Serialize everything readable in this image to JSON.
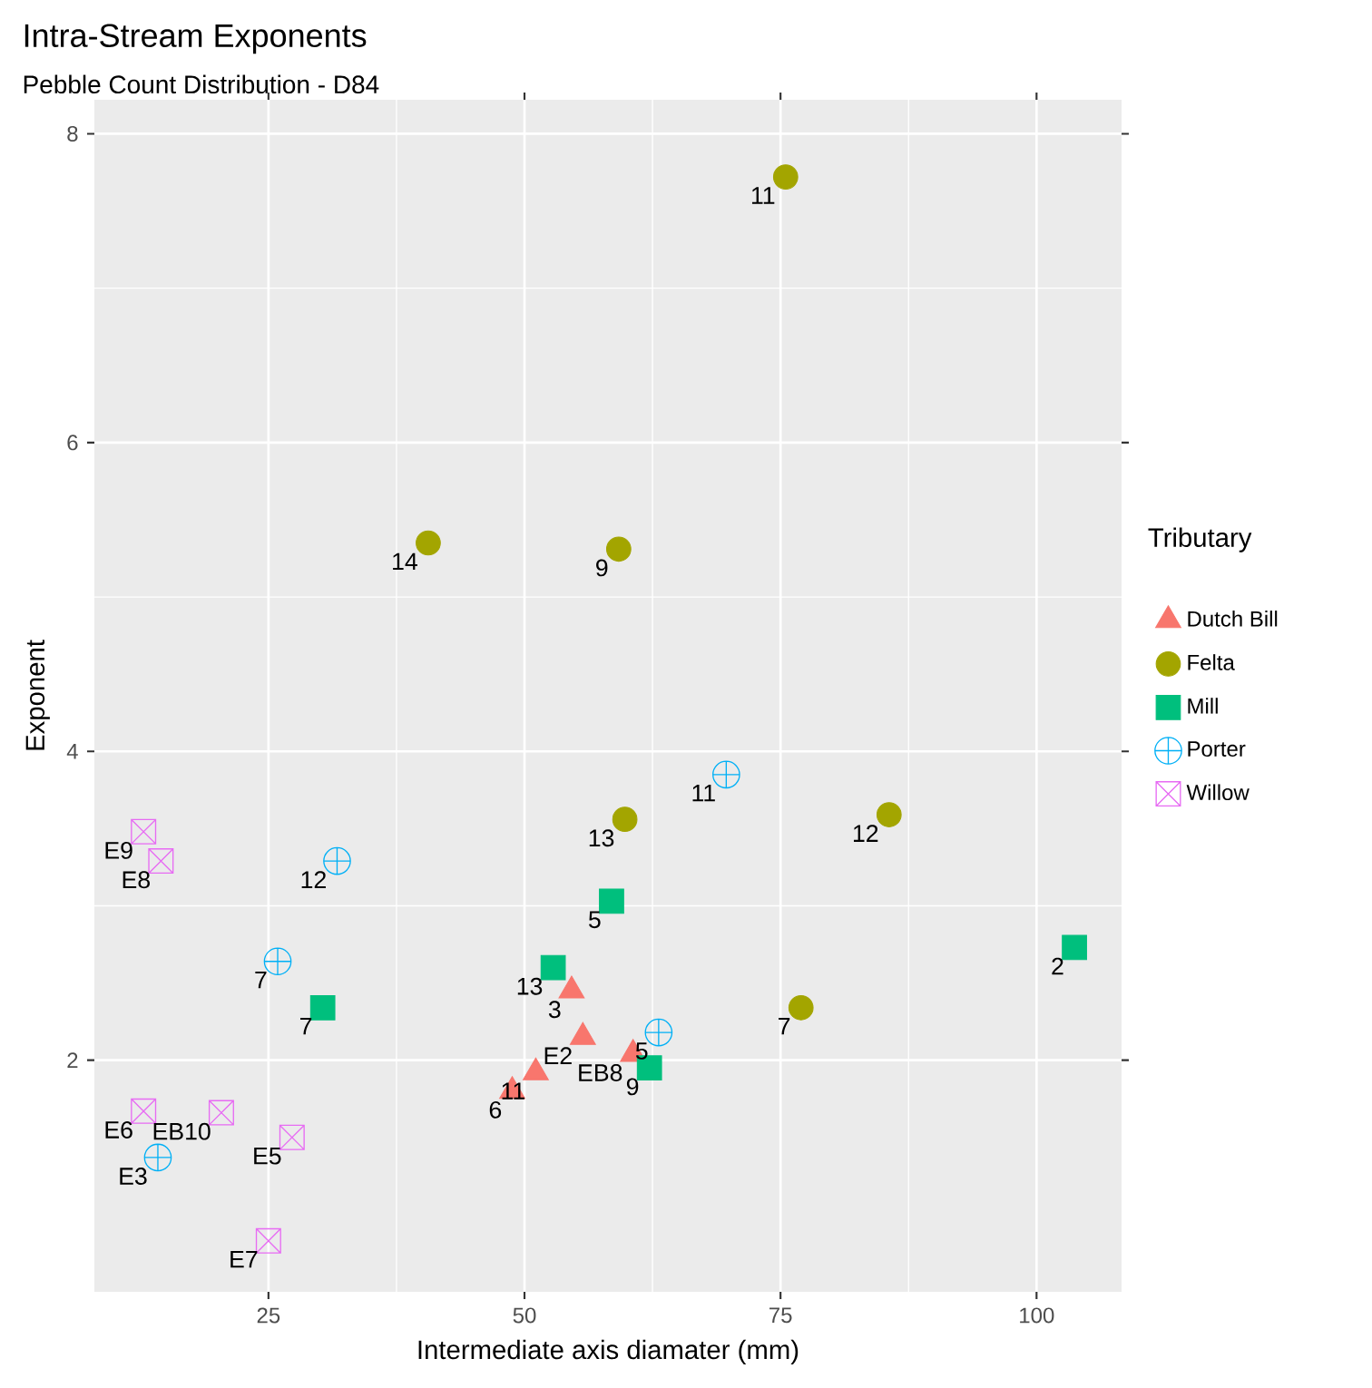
{
  "chart_data": {
    "type": "scatter",
    "title": "Intra-Stream Exponents",
    "subtitle": "Pebble Count Distribution - D84",
    "xlabel": "Intermediate axis diamater (mm)",
    "ylabel": "Exponent",
    "legend_title": "Tributary",
    "legend": "right",
    "grid": true,
    "xlim": [
      8.0,
      108.3
    ],
    "ylim": [
      0.5,
      8.22
    ],
    "xticks": [
      25,
      50,
      75,
      100
    ],
    "yticks": [
      2,
      4,
      6,
      8
    ],
    "series": [
      {
        "name": "Dutch Bill",
        "color": "#f8766d",
        "marker": "triangle",
        "x": [
          54.6,
          55.7,
          60.6,
          51.1,
          48.8
        ],
        "values": [
          2.45,
          2.15,
          2.04,
          1.92,
          1.8
        ]
      },
      {
        "name": "Felta",
        "color": "#a3a500",
        "marker": "circle",
        "x": [
          75.5,
          40.6,
          59.2,
          59.8,
          85.6,
          77.0
        ],
        "values": [
          7.72,
          5.35,
          5.31,
          3.56,
          3.59,
          2.34
        ]
      },
      {
        "name": "Mill",
        "color": "#00bf7d",
        "marker": "square",
        "x": [
          58.5,
          52.8,
          30.3,
          103.7,
          62.2
        ],
        "values": [
          3.03,
          2.6,
          2.34,
          2.73,
          1.95
        ]
      },
      {
        "name": "Porter",
        "color": "#00b0f6",
        "marker": "cross",
        "x": [
          69.7,
          31.7,
          25.9,
          63.1,
          14.2
        ],
        "values": [
          3.85,
          3.29,
          2.64,
          2.18,
          1.37
        ]
      },
      {
        "name": "Willow",
        "color": "#e76bf3",
        "marker": "square cross",
        "x": [
          12.8,
          14.5,
          12.8,
          20.4,
          27.3,
          25.0
        ],
        "values": [
          3.48,
          3.29,
          1.67,
          1.66,
          1.5,
          0.83
        ]
      }
    ],
    "annotations": [
      {
        "text": "3",
        "x": 54.6,
        "y": 2.45
      },
      {
        "text": "E2",
        "x": 55.7,
        "y": 2.15
      },
      {
        "text": "EB8",
        "x": 60.6,
        "y": 2.04
      },
      {
        "text": "11",
        "x": 51.1,
        "y": 1.92
      },
      {
        "text": "6",
        "x": 48.8,
        "y": 1.8
      },
      {
        "text": "11",
        "x": 75.5,
        "y": 7.72
      },
      {
        "text": "14",
        "x": 40.6,
        "y": 5.35
      },
      {
        "text": "9",
        "x": 59.2,
        "y": 5.31
      },
      {
        "text": "13",
        "x": 59.8,
        "y": 3.56
      },
      {
        "text": "12",
        "x": 85.6,
        "y": 3.59
      },
      {
        "text": "7",
        "x": 77.0,
        "y": 2.34
      },
      {
        "text": "5",
        "x": 58.5,
        "y": 3.03
      },
      {
        "text": "13",
        "x": 52.8,
        "y": 2.6
      },
      {
        "text": "7",
        "x": 30.3,
        "y": 2.34
      },
      {
        "text": "2",
        "x": 103.7,
        "y": 2.73
      },
      {
        "text": "9",
        "x": 62.2,
        "y": 1.95
      },
      {
        "text": "11",
        "x": 69.7,
        "y": 3.85
      },
      {
        "text": "12",
        "x": 31.7,
        "y": 3.29
      },
      {
        "text": "7",
        "x": 25.9,
        "y": 2.64
      },
      {
        "text": "5",
        "x": 63.1,
        "y": 2.18
      },
      {
        "text": "E3",
        "x": 14.2,
        "y": 1.37
      },
      {
        "text": "E9",
        "x": 12.8,
        "y": 3.48
      },
      {
        "text": "E8",
        "x": 14.5,
        "y": 3.29
      },
      {
        "text": "E6",
        "x": 12.8,
        "y": 1.67
      },
      {
        "text": "EB10",
        "x": 20.4,
        "y": 1.66
      },
      {
        "text": "E5",
        "x": 27.3,
        "y": 1.5
      },
      {
        "text": "E7",
        "x": 25.0,
        "y": 0.83
      }
    ]
  }
}
